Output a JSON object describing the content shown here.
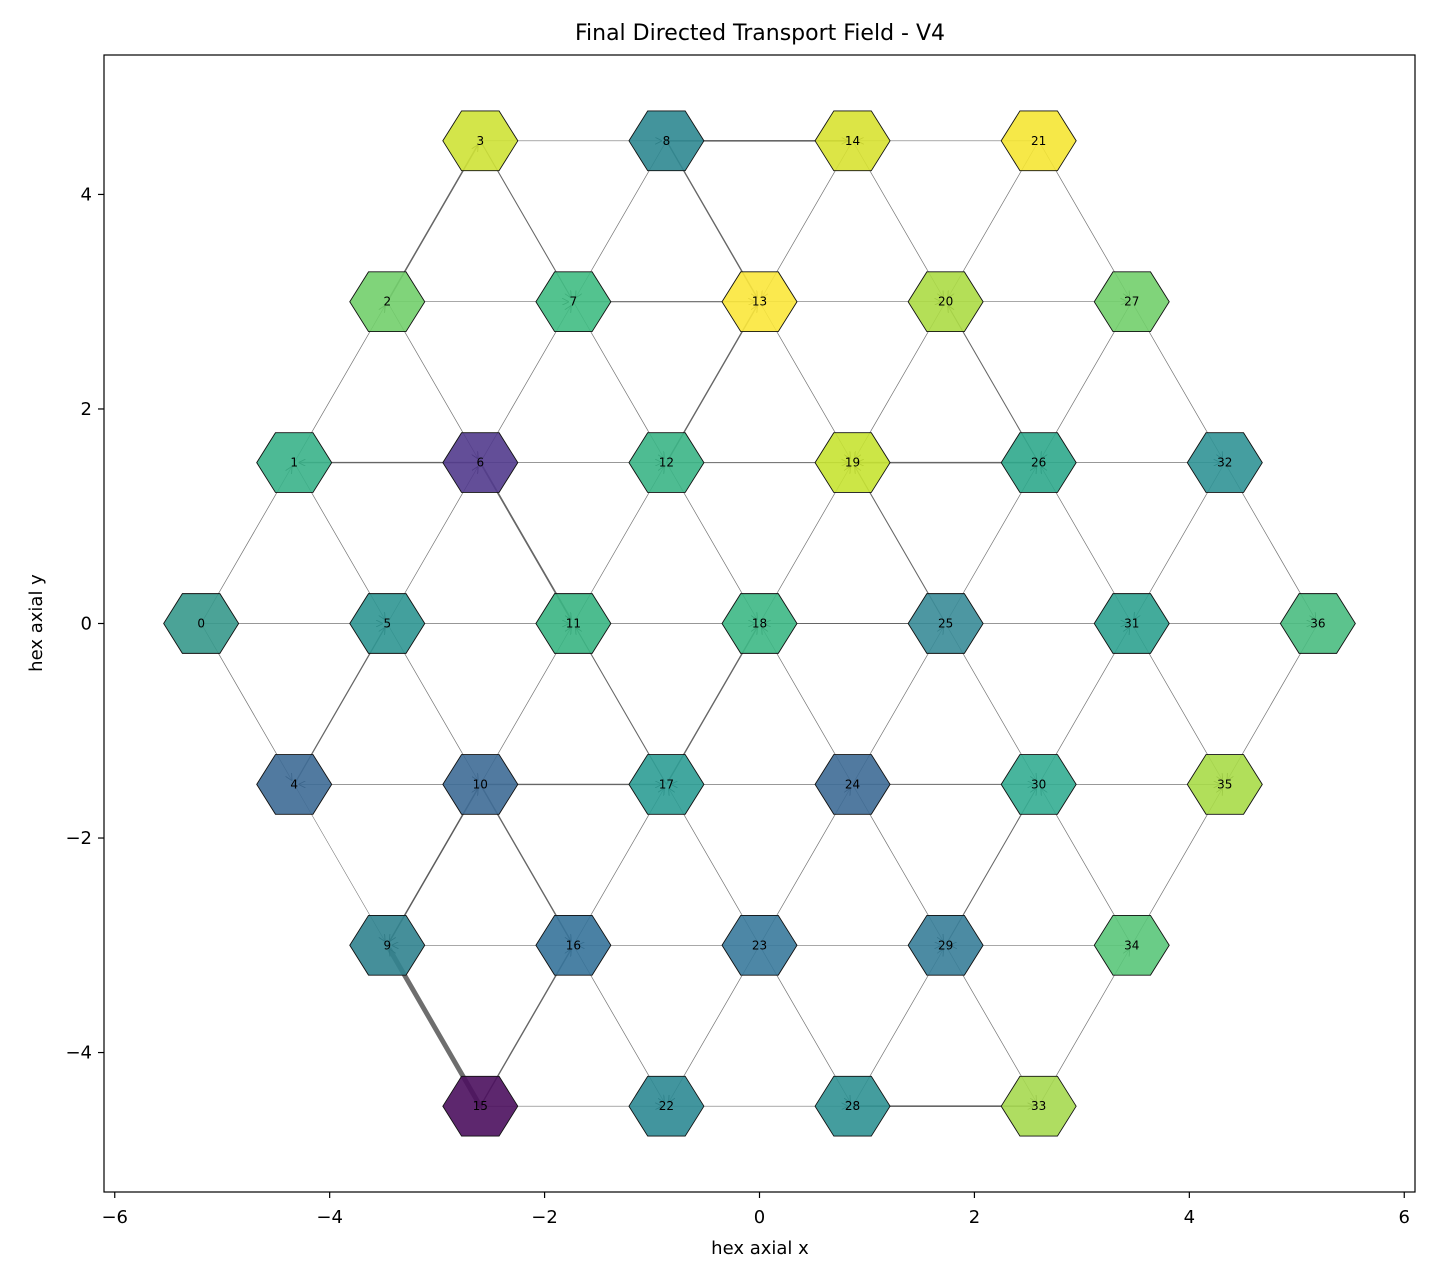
{
  "chart_data": {
    "type": "scatter",
    "title": "Final Directed Transport Field - V4",
    "xlabel": "hex axial x",
    "ylabel": "hex axial y",
    "xlim": [
      -6.1,
      6.1
    ],
    "ylim": [
      -5.3,
      5.3
    ],
    "xticks": [
      -6,
      -4,
      -2,
      0,
      2,
      4,
      6
    ],
    "yticks": [
      -4,
      -2,
      0,
      2,
      4
    ],
    "grid": false,
    "nodes": [
      {
        "id": 0,
        "x": -5.196,
        "y": 0.0,
        "color": "#37998c"
      },
      {
        "id": 1,
        "x": -4.33,
        "y": 1.5,
        "color": "#3ab28a"
      },
      {
        "id": 2,
        "x": -3.464,
        "y": 3.0,
        "color": "#72cf6c"
      },
      {
        "id": 3,
        "x": -2.598,
        "y": 4.5,
        "color": "#cee236"
      },
      {
        "id": 4,
        "x": -4.33,
        "y": -1.5,
        "color": "#3e6b96"
      },
      {
        "id": 5,
        "x": -3.464,
        "y": 0.0,
        "color": "#2f9692"
      },
      {
        "id": 6,
        "x": -2.598,
        "y": 1.5,
        "color": "#523b8d"
      },
      {
        "id": 7,
        "x": -1.732,
        "y": 3.0,
        "color": "#40bd83"
      },
      {
        "id": 8,
        "x": -0.866,
        "y": 4.5,
        "color": "#2f8891"
      },
      {
        "id": 9,
        "x": -3.464,
        "y": -3.0,
        "color": "#31838f"
      },
      {
        "id": 10,
        "x": -2.598,
        "y": -1.5,
        "color": "#3e6b96"
      },
      {
        "id": 11,
        "x": -1.732,
        "y": 0.0,
        "color": "#3ab583"
      },
      {
        "id": 12,
        "x": -0.866,
        "y": 1.5,
        "color": "#3bb586"
      },
      {
        "id": 13,
        "x": 0.0,
        "y": 3.0,
        "color": "#fbe73b"
      },
      {
        "id": 14,
        "x": 0.866,
        "y": 4.5,
        "color": "#d8e232"
      },
      {
        "id": 15,
        "x": -2.598,
        "y": -4.5,
        "color": "#4b0f5e"
      },
      {
        "id": 16,
        "x": -1.732,
        "y": -3.0,
        "color": "#36739a"
      },
      {
        "id": 17,
        "x": -0.866,
        "y": -1.5,
        "color": "#2e9d95"
      },
      {
        "id": 18,
        "x": 0.0,
        "y": 0.0,
        "color": "#3db885"
      },
      {
        "id": 19,
        "x": 0.866,
        "y": 1.5,
        "color": "#c6e332"
      },
      {
        "id": 20,
        "x": 1.732,
        "y": 3.0,
        "color": "#acdc45"
      },
      {
        "id": 21,
        "x": 2.598,
        "y": 4.5,
        "color": "#f5e534"
      },
      {
        "id": 22,
        "x": -0.866,
        "y": -4.5,
        "color": "#2e8a93"
      },
      {
        "id": 23,
        "x": 0.0,
        "y": -3.0,
        "color": "#3a7a9c"
      },
      {
        "id": 24,
        "x": 0.866,
        "y": -1.5,
        "color": "#3e6b96"
      },
      {
        "id": 25,
        "x": 1.732,
        "y": 0.0,
        "color": "#3a8c98"
      },
      {
        "id": 26,
        "x": 2.598,
        "y": 1.5,
        "color": "#2fa98c"
      },
      {
        "id": 27,
        "x": 3.464,
        "y": 3.0,
        "color": "#72cf6c"
      },
      {
        "id": 28,
        "x": 0.866,
        "y": -4.5,
        "color": "#309293"
      },
      {
        "id": 29,
        "x": 1.732,
        "y": -3.0,
        "color": "#387e99"
      },
      {
        "id": 30,
        "x": 2.598,
        "y": -1.5,
        "color": "#34ad92"
      },
      {
        "id": 31,
        "x": 3.464,
        "y": 0.0,
        "color": "#2fa290"
      },
      {
        "id": 32,
        "x": 4.33,
        "y": 1.5,
        "color": "#319396"
      },
      {
        "id": 33,
        "x": 2.598,
        "y": -4.5,
        "color": "#a6d950"
      },
      {
        "id": 34,
        "x": 3.464,
        "y": -3.0,
        "color": "#5ac77a"
      },
      {
        "id": 35,
        "x": 4.33,
        "y": -1.5,
        "color": "#a9dc48"
      },
      {
        "id": 36,
        "x": 5.196,
        "y": 0.0,
        "color": "#4abd81"
      }
    ],
    "edges": [
      {
        "from": 0,
        "to": 1,
        "w": 1
      },
      {
        "from": 0,
        "to": 4,
        "w": 1
      },
      {
        "from": 0,
        "to": 5,
        "w": 1
      },
      {
        "from": 1,
        "to": 2,
        "w": 1
      },
      {
        "from": 1,
        "to": 5,
        "w": 1
      },
      {
        "from": 6,
        "to": 1,
        "w": 2
      },
      {
        "from": 2,
        "to": 3,
        "w": 2.2
      },
      {
        "from": 2,
        "to": 6,
        "w": 1
      },
      {
        "from": 2,
        "to": 7,
        "w": 1
      },
      {
        "from": 3,
        "to": 8,
        "w": 1
      },
      {
        "from": 3,
        "to": 7,
        "w": 1.5
      },
      {
        "from": 4,
        "to": 5,
        "w": 1.8
      },
      {
        "from": 10,
        "to": 4,
        "w": 1
      },
      {
        "from": 4,
        "to": 9,
        "w": 0.8
      },
      {
        "from": 5,
        "to": 6,
        "w": 1
      },
      {
        "from": 5,
        "to": 10,
        "w": 1
      },
      {
        "from": 5,
        "to": 11,
        "w": 1
      },
      {
        "from": 6,
        "to": 7,
        "w": 1
      },
      {
        "from": 6,
        "to": 11,
        "w": 2.5
      },
      {
        "from": 6,
        "to": 12,
        "w": 1
      },
      {
        "from": 7,
        "to": 12,
        "w": 1
      },
      {
        "from": 7,
        "to": 13,
        "w": 1.5
      },
      {
        "from": 8,
        "to": 7,
        "w": 1
      },
      {
        "from": 8,
        "to": 13,
        "w": 2
      },
      {
        "from": 8,
        "to": 14,
        "w": 2.2
      },
      {
        "from": 9,
        "to": 10,
        "w": 1
      },
      {
        "from": 10,
        "to": 9,
        "w": 2.2
      },
      {
        "from": 15,
        "to": 9,
        "w": 7
      },
      {
        "from": 10,
        "to": 11,
        "w": 1
      },
      {
        "from": 10,
        "to": 16,
        "w": 2
      },
      {
        "from": 10,
        "to": 17,
        "w": 2
      },
      {
        "from": 11,
        "to": 12,
        "w": 1
      },
      {
        "from": 17,
        "to": 11,
        "w": 1.5
      },
      {
        "from": 11,
        "to": 18,
        "w": 1
      },
      {
        "from": 12,
        "to": 13,
        "w": 2
      },
      {
        "from": 12,
        "to": 18,
        "w": 1
      },
      {
        "from": 12,
        "to": 19,
        "w": 1.5
      },
      {
        "from": 14,
        "to": 13,
        "w": 1
      },
      {
        "from": 13,
        "to": 19,
        "w": 1
      },
      {
        "from": 13,
        "to": 20,
        "w": 1
      },
      {
        "from": 14,
        "to": 20,
        "w": 1
      },
      {
        "from": 21,
        "to": 14,
        "w": 1
      },
      {
        "from": 15,
        "to": 16,
        "w": 2
      },
      {
        "from": 15,
        "to": 22,
        "w": 1
      },
      {
        "from": 16,
        "to": 9,
        "w": 1
      },
      {
        "from": 16,
        "to": 17,
        "w": 1
      },
      {
        "from": 16,
        "to": 22,
        "w": 1
      },
      {
        "from": 23,
        "to": 16,
        "w": 1
      },
      {
        "from": 17,
        "to": 18,
        "w": 2
      },
      {
        "from": 23,
        "to": 17,
        "w": 1
      },
      {
        "from": 24,
        "to": 17,
        "w": 1
      },
      {
        "from": 18,
        "to": 19,
        "w": 1
      },
      {
        "from": 25,
        "to": 18,
        "w": 1.5
      },
      {
        "from": 24,
        "to": 18,
        "w": 1
      },
      {
        "from": 20,
        "to": 19,
        "w": 1
      },
      {
        "from": 26,
        "to": 19,
        "w": 2.2
      },
      {
        "from": 25,
        "to": 19,
        "w": 1.5
      },
      {
        "from": 21,
        "to": 20,
        "w": 1
      },
      {
        "from": 26,
        "to": 20,
        "w": 1.5
      },
      {
        "from": 20,
        "to": 27,
        "w": 1
      },
      {
        "from": 21,
        "to": 27,
        "w": 1
      },
      {
        "from": 23,
        "to": 22,
        "w": 1
      },
      {
        "from": 22,
        "to": 28,
        "w": 1
      },
      {
        "from": 23,
        "to": 24,
        "w": 1
      },
      {
        "from": 23,
        "to": 29,
        "w": 1
      },
      {
        "from": 23,
        "to": 28,
        "w": 1
      },
      {
        "from": 24,
        "to": 25,
        "w": 1
      },
      {
        "from": 24,
        "to": 29,
        "w": 1
      },
      {
        "from": 24,
        "to": 30,
        "w": 1.5
      },
      {
        "from": 25,
        "to": 26,
        "w": 1
      },
      {
        "from": 25,
        "to": 30,
        "w": 1
      },
      {
        "from": 25,
        "to": 31,
        "w": 1
      },
      {
        "from": 27,
        "to": 26,
        "w": 1
      },
      {
        "from": 31,
        "to": 26,
        "w": 1
      },
      {
        "from": 26,
        "to": 32,
        "w": 1
      },
      {
        "from": 27,
        "to": 32,
        "w": 1
      },
      {
        "from": 28,
        "to": 29,
        "w": 1
      },
      {
        "from": 28,
        "to": 33,
        "w": 2.2
      },
      {
        "from": 29,
        "to": 30,
        "w": 1.5
      },
      {
        "from": 34,
        "to": 29,
        "w": 1
      },
      {
        "from": 29,
        "to": 33,
        "w": 1
      },
      {
        "from": 30,
        "to": 31,
        "w": 1
      },
      {
        "from": 34,
        "to": 30,
        "w": 1
      },
      {
        "from": 30,
        "to": 35,
        "w": 1
      },
      {
        "from": 32,
        "to": 31,
        "w": 1
      },
      {
        "from": 31,
        "to": 35,
        "w": 1
      },
      {
        "from": 31,
        "to": 36,
        "w": 1
      },
      {
        "from": 32,
        "to": 36,
        "w": 1
      },
      {
        "from": 33,
        "to": 34,
        "w": 1
      },
      {
        "from": 34,
        "to": 35,
        "w": 1
      },
      {
        "from": 36,
        "to": 35,
        "w": 1
      }
    ]
  }
}
